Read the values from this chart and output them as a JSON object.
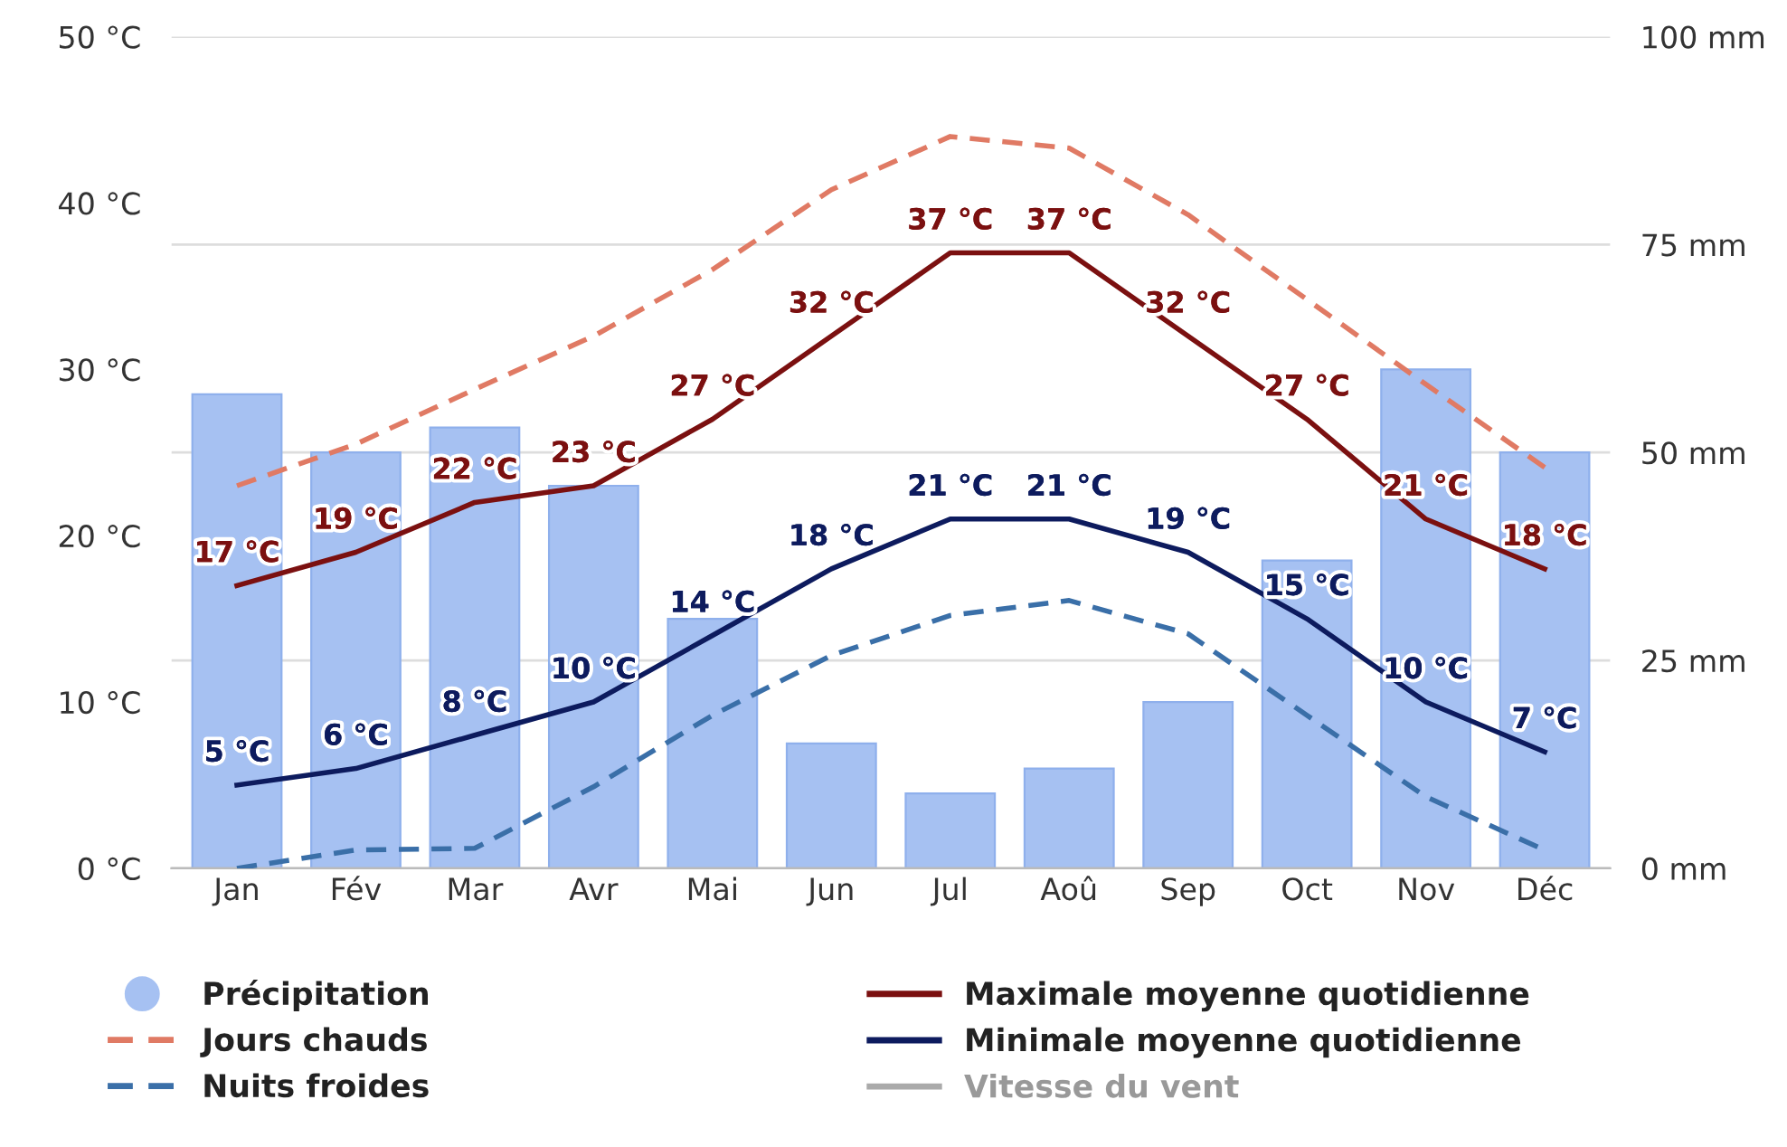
{
  "chart_data": {
    "type": "bar",
    "categories": [
      "Jan",
      "Fév",
      "Mar",
      "Avr",
      "Mai",
      "Jun",
      "Jul",
      "Aoû",
      "Sep",
      "Oct",
      "Nov",
      "Déc"
    ],
    "series": [
      {
        "name": "Précipitation",
        "axis": "y2",
        "color": "#a6c1f2",
        "values": [
          57,
          50,
          53,
          46,
          30,
          15,
          9,
          12,
          20,
          37,
          60,
          50
        ]
      },
      {
        "name": "Jours chauds",
        "type": "line",
        "line_style": "dashed",
        "color": "#e07a64",
        "values": [
          23,
          25.5,
          28.8,
          32,
          36,
          40.8,
          44,
          43.3,
          39.3,
          34.2,
          29.1,
          24.1
        ]
      },
      {
        "name": "Nuits froides",
        "type": "line",
        "line_style": "dashed",
        "color": "#3a6fa8",
        "values": [
          0,
          1.1,
          1.2,
          4.9,
          9.2,
          12.8,
          15.2,
          16.1,
          14.1,
          9.2,
          4.3,
          1.1
        ]
      },
      {
        "name": "Maximale moyenne quotidienne",
        "type": "line",
        "line_style": "solid",
        "color": "#7b1010",
        "values": [
          17,
          19,
          22,
          23,
          27,
          32,
          37,
          37,
          32,
          27,
          21,
          18
        ],
        "value_labels": [
          "17 °C",
          "19 °C",
          "22 °C",
          "23 °C",
          "27 °C",
          "32 °C",
          "37 °C",
          "37 °C",
          "32 °C",
          "27 °C",
          "21 °C",
          "18 °C"
        ]
      },
      {
        "name": "Minimale moyenne quotidienne",
        "type": "line",
        "line_style": "solid",
        "color": "#0d1b5e",
        "values": [
          5,
          6,
          8,
          10,
          14,
          18,
          21,
          21,
          19,
          15,
          10,
          7
        ],
        "value_labels": [
          "5 °C",
          "6 °C",
          "8 °C",
          "10 °C",
          "14 °C",
          "18 °C",
          "21 °C",
          "21 °C",
          "19 °C",
          "15 °C",
          "10 °C",
          "7 °C"
        ]
      },
      {
        "name": "Vitesse du vent",
        "type": "line",
        "line_style": "solid",
        "color": "#aaaaaa",
        "values": [
          null,
          null,
          null,
          null,
          null,
          null,
          null,
          null,
          null,
          null,
          null,
          null
        ]
      }
    ],
    "ylim": [
      0,
      50
    ],
    "yticks": [
      {
        "value": 0,
        "label": "0 °C"
      },
      {
        "value": 10,
        "label": "10 °C"
      },
      {
        "value": 20,
        "label": "20 °C"
      },
      {
        "value": 30,
        "label": "30 °C"
      },
      {
        "value": 40,
        "label": "40 °C"
      },
      {
        "value": 50,
        "label": "50 °C"
      }
    ],
    "y2lim": [
      0,
      100
    ],
    "y2ticks": [
      {
        "value": 0,
        "label": "0 mm"
      },
      {
        "value": 25,
        "label": "25 mm"
      },
      {
        "value": 50,
        "label": "50 mm"
      },
      {
        "value": 75,
        "label": "75 mm"
      },
      {
        "value": 100,
        "label": "100 mm"
      }
    ],
    "grid": "y",
    "legend": "bottom",
    "marker": "none"
  }
}
